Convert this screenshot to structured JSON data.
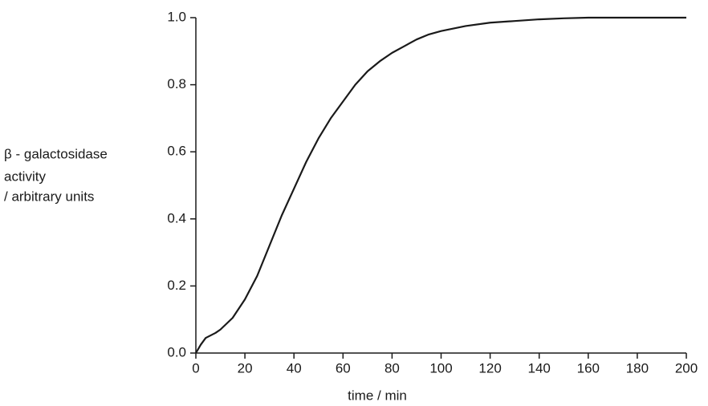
{
  "chart_data": {
    "type": "line",
    "x_label": "time / min",
    "y_label": [
      "β - galactosidase",
      "activity",
      "/ arbitrary units"
    ],
    "x": [
      0,
      2,
      4,
      8,
      10,
      15,
      20,
      25,
      30,
      35,
      40,
      45,
      50,
      55,
      60,
      65,
      70,
      75,
      80,
      85,
      90,
      95,
      100,
      110,
      120,
      130,
      140,
      150,
      160,
      200
    ],
    "series": [
      {
        "color": "#1a1a1a",
        "values": [
          0.0,
          0.025,
          0.045,
          0.06,
          0.07,
          0.105,
          0.16,
          0.23,
          0.32,
          0.41,
          0.49,
          0.57,
          0.64,
          0.7,
          0.75,
          0.8,
          0.84,
          0.87,
          0.895,
          0.915,
          0.935,
          0.95,
          0.96,
          0.975,
          0.985,
          0.99,
          0.995,
          0.998,
          1.0,
          1.0
        ]
      }
    ],
    "xlim": [
      0,
      200
    ],
    "xticks": [
      0,
      20,
      40,
      60,
      80,
      100,
      120,
      140,
      160,
      180,
      200
    ],
    "ylim": [
      0,
      1
    ],
    "yticks": [
      {
        "value": 0,
        "label": "0.0"
      },
      0.2,
      0.4,
      0.6,
      0.8,
      {
        "value": 1,
        "label": "1.0"
      }
    ],
    "grid": false
  }
}
